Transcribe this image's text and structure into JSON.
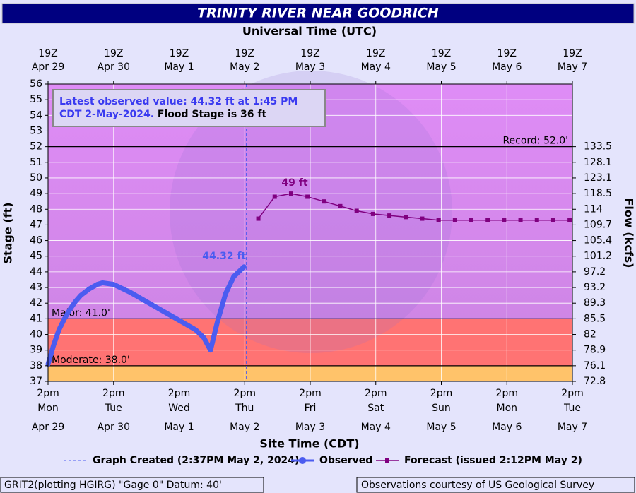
{
  "chart_data": {
    "type": "line",
    "title": "TRINITY RIVER NEAR GOODRICH",
    "top_axis_label": "Universal Time (UTC)",
    "x_label": "Site Time (CDT)",
    "y_label": "Stage (ft)",
    "y2_label": "Flow (kcfs)",
    "info_observed": [
      "Latest observed value: 44.32 ft at 1:45 PM",
      "CDT 2-May-2024."
    ],
    "info_flood": "Flood Stage is 36 ft",
    "xlim": [
      "2024-04-29T14:00",
      "2024-05-07T14:00"
    ],
    "xticks": [
      "2024-04-29T14:00",
      "2024-04-30T14:00",
      "2024-05-01T14:00",
      "2024-05-02T14:00",
      "2024-05-03T14:00",
      "2024-05-04T14:00",
      "2024-05-05T14:00",
      "2024-05-06T14:00",
      "2024-05-07T14:00"
    ],
    "xtick_labels": [
      [
        "2pm",
        "Mon"
      ],
      [
        "2pm",
        "Tue"
      ],
      [
        "2pm",
        "Wed"
      ],
      [
        "2pm",
        "Thu"
      ],
      [
        "2pm",
        "Fri"
      ],
      [
        "2pm",
        "Sat"
      ],
      [
        "2pm",
        "Sun"
      ],
      [
        "2pm",
        "Mon"
      ],
      [
        "2pm",
        "Tue"
      ]
    ],
    "xtick_dates": [
      "Apr 29",
      "Apr 30",
      "May 1",
      "May 2",
      "May 3",
      "May 4",
      "May 5",
      "May 6",
      "May 7"
    ],
    "top_tick_labels": [
      [
        "19Z",
        "Apr 29"
      ],
      [
        "19Z",
        "Apr 30"
      ],
      [
        "19Z",
        "May 1"
      ],
      [
        "19Z",
        "May 2"
      ],
      [
        "19Z",
        "May 3"
      ],
      [
        "19Z",
        "May 4"
      ],
      [
        "19Z",
        "May 5"
      ],
      [
        "19Z",
        "May 6"
      ],
      [
        "19Z",
        "May 7"
      ]
    ],
    "ylim": [
      37,
      56
    ],
    "yticks": [
      37,
      38,
      39,
      40,
      41,
      42,
      43,
      44,
      45,
      46,
      47,
      48,
      49,
      50,
      51,
      52,
      53,
      54,
      55,
      56
    ],
    "flow_ticks": [
      {
        "stage": 37,
        "flow": 72.8
      },
      {
        "stage": 38,
        "flow": 76.1
      },
      {
        "stage": 39,
        "flow": 78.9
      },
      {
        "stage": 40,
        "flow": 82.0
      },
      {
        "stage": 41,
        "flow": 85.5
      },
      {
        "stage": 42,
        "flow": 89.3
      },
      {
        "stage": 43,
        "flow": 93.2
      },
      {
        "stage": 44,
        "flow": 97.2
      },
      {
        "stage": 45,
        "flow": 101.2
      },
      {
        "stage": 46,
        "flow": 105.4
      },
      {
        "stage": 47,
        "flow": 109.7
      },
      {
        "stage": 48,
        "flow": 114.0
      },
      {
        "stage": 49,
        "flow": 118.5
      },
      {
        "stage": 50,
        "flow": 123.1
      },
      {
        "stage": 51,
        "flow": 128.1
      },
      {
        "stage": 52,
        "flow": 133.5
      }
    ],
    "thresholds": [
      {
        "label": "Record: 52.0'",
        "value": 52.0
      },
      {
        "label": "Major: 41.0'",
        "value": 41.0
      },
      {
        "label": "Moderate: 38.0'",
        "value": 38.0
      }
    ],
    "zone_colors": {
      "minor": "#ffc36a",
      "moderate": "#ff7373",
      "major_low": "#cf86e6",
      "major_high": "#df8cf6"
    },
    "grid": true,
    "graph_created": {
      "label": "Graph Created (2:37PM May 2, 2024)",
      "x": "2024-05-02T14:37",
      "color": "#4b5cf0"
    },
    "series": [
      {
        "name": "Observed",
        "color": "#4b5cf0",
        "x": [
          "2024-04-29T14:00",
          "2024-04-29T16:00",
          "2024-04-29T18:00",
          "2024-04-29T20:00",
          "2024-04-29T22:00",
          "2024-04-30T00:00",
          "2024-04-30T02:00",
          "2024-04-30T05:00",
          "2024-04-30T08:00",
          "2024-04-30T10:00",
          "2024-04-30T14:00",
          "2024-04-30T20:00",
          "2024-05-01T02:00",
          "2024-05-01T08:00",
          "2024-05-01T14:00",
          "2024-05-01T20:00",
          "2024-05-01T23:00",
          "2024-05-02T01:30",
          "2024-05-02T04:00",
          "2024-05-02T07:00",
          "2024-05-02T10:00",
          "2024-05-02T13:45"
        ],
        "values": [
          38.1,
          39.3,
          40.3,
          41.0,
          41.6,
          42.1,
          42.5,
          42.9,
          43.2,
          43.3,
          43.2,
          42.7,
          42.1,
          41.5,
          40.9,
          40.3,
          39.8,
          39.0,
          40.8,
          42.6,
          43.7,
          44.32
        ],
        "value_labels": [
          null,
          null,
          null,
          null,
          null,
          null,
          null,
          null,
          null,
          null,
          null,
          null,
          null,
          null,
          null,
          null,
          null,
          null,
          null,
          null,
          null,
          "44.32 ft"
        ]
      },
      {
        "name": "Forecast (issued 2:12PM May 2)",
        "color": "#800080",
        "x": [
          "2024-05-02T19:00",
          "2024-05-03T01:00",
          "2024-05-03T07:00",
          "2024-05-03T13:00",
          "2024-05-03T19:00",
          "2024-05-04T01:00",
          "2024-05-04T07:00",
          "2024-05-04T13:00",
          "2024-05-04T19:00",
          "2024-05-05T01:00",
          "2024-05-05T07:00",
          "2024-05-05T13:00",
          "2024-05-05T19:00",
          "2024-05-06T01:00",
          "2024-05-06T07:00",
          "2024-05-06T13:00",
          "2024-05-06T19:00",
          "2024-05-07T01:00",
          "2024-05-07T07:00",
          "2024-05-07T13:00"
        ],
        "values": [
          47.4,
          48.8,
          49.0,
          48.8,
          48.5,
          48.2,
          47.9,
          47.7,
          47.6,
          47.5,
          47.4,
          47.3,
          47.3,
          47.3,
          47.3,
          47.3,
          47.3,
          47.3,
          47.3,
          47.3
        ],
        "value_labels": [
          null,
          null,
          "49 ft",
          null,
          null,
          null,
          null,
          null,
          null,
          null,
          null,
          null,
          null,
          null,
          null,
          null,
          null,
          null,
          null,
          null
        ]
      }
    ],
    "footer_left": "GRIT2(plotting HGIRG) \"Gage 0\" Datum: 40'",
    "footer_right": "Observations courtesy of US Geological Survey"
  }
}
